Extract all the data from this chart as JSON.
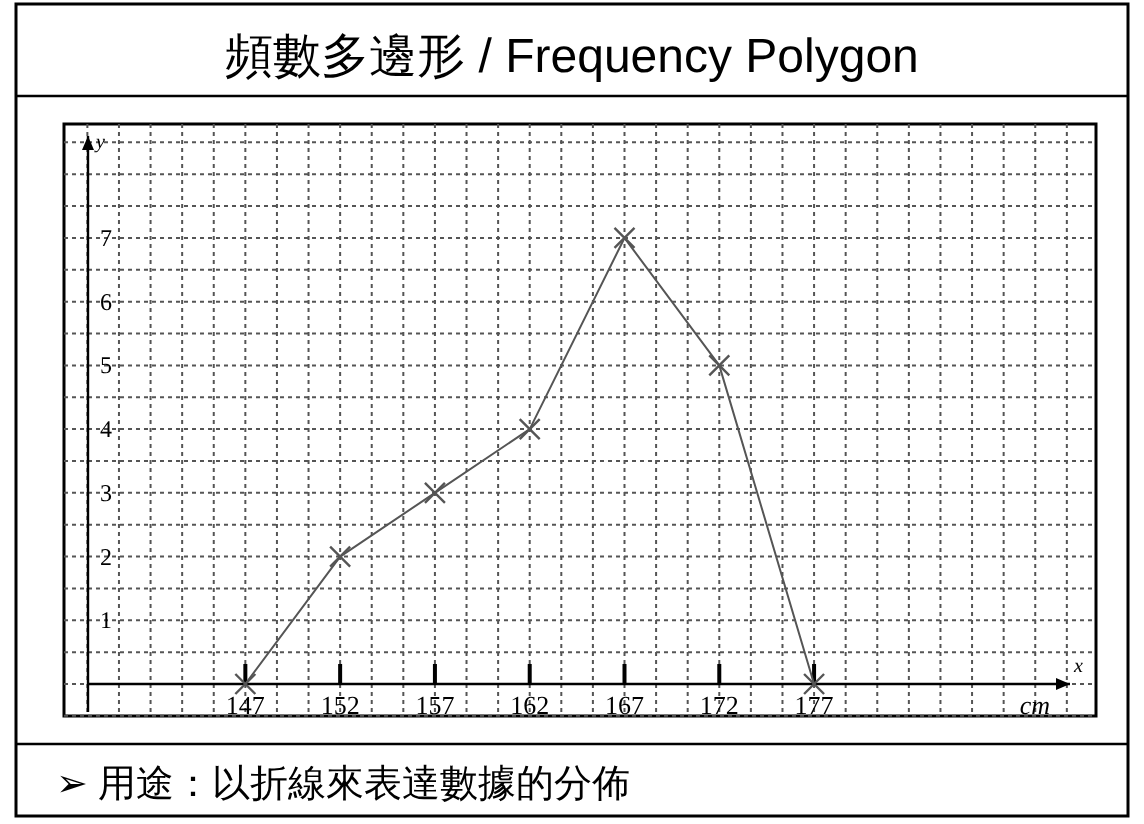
{
  "chart_data": {
    "type": "line",
    "title": "頻數多邊形  / Frequency Polygon",
    "xlabel": "x",
    "ylabel": "y",
    "x": [
      147,
      152,
      157,
      162,
      167,
      172,
      177
    ],
    "series": [
      {
        "color": "#555555",
        "values": [
          0,
          2,
          3,
          4,
          7,
          5,
          0
        ]
      }
    ],
    "marker": "cross",
    "line_style": "solid",
    "grid": true,
    "xlim": [
      138.7,
      190.5
    ],
    "ylim": [
      0,
      8.6
    ],
    "xticks": [
      147,
      152,
      157,
      162,
      167,
      172,
      177
    ],
    "yticks": [
      1,
      2,
      3,
      4,
      5,
      6,
      7
    ],
    "annotations": [
      "cm",
      "➢   用途：以折線來表達數據的分佈"
    ]
  }
}
